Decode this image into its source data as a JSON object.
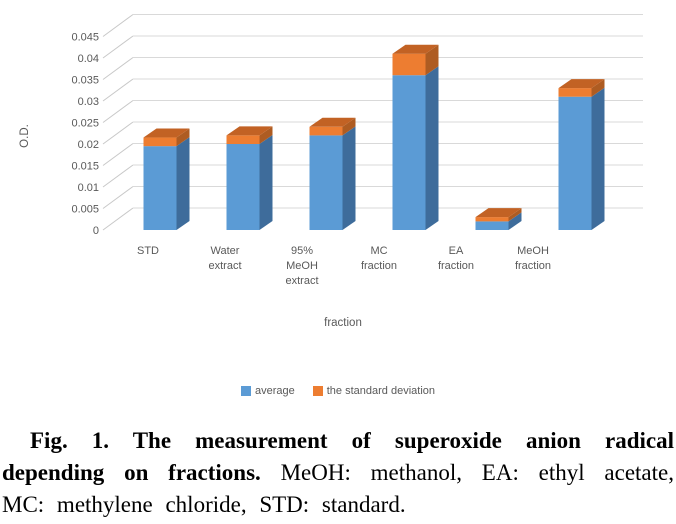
{
  "figure": {
    "caption_lines": [
      {
        "bold": "Fig. 1. The measurement of superoxide anion radical",
        "normal": ""
      },
      {
        "bold": "depending on fractions.",
        "normal": " MeOH: methanol, EA: ethyl acetate,"
      },
      {
        "bold": "",
        "normal": "MC: methylene chloride, STD: standard."
      }
    ]
  },
  "chart_data": {
    "type": "bar",
    "style": "3d-stacked-column",
    "title": "",
    "xlabel": "fraction",
    "ylabel": "O.D.",
    "ylim": [
      0,
      0.045
    ],
    "ytick_step": 0.005,
    "ytick_labels": [
      "0",
      "0.005",
      "0.01",
      "0.015",
      "0.02",
      "0.025",
      "0.03",
      "0.035",
      "0.04",
      "0.045"
    ],
    "categories": [
      "STD",
      "Water extract",
      "95% MeOH extract",
      "MC fraction",
      "EA fraction",
      "MeOH fraction"
    ],
    "category_label_lines": [
      [
        "STD"
      ],
      [
        "Water",
        "extract"
      ],
      [
        "95%",
        "MeOH",
        "extract"
      ],
      [
        "MC",
        "fraction"
      ],
      [
        "EA",
        "fraction"
      ],
      [
        "MeOH",
        "fraction"
      ]
    ],
    "series": [
      {
        "name": "average",
        "values": [
          0.0195,
          0.02,
          0.022,
          0.036,
          0.002,
          0.031
        ],
        "color": "#5B9BD5",
        "color_side": "#3E6C9B"
      },
      {
        "name": "the standard deviation",
        "values": [
          0.002,
          0.002,
          0.002,
          0.005,
          0.001,
          0.002
        ],
        "color": "#ED7D31",
        "color_side": "#AE5C22",
        "color_top": "#C26224"
      }
    ],
    "legend_position": "bottom",
    "grid": true,
    "gridline_color": "#D9D9D9",
    "side_tick_color": "#C8C8C8",
    "axis_text_color": "#595959"
  }
}
